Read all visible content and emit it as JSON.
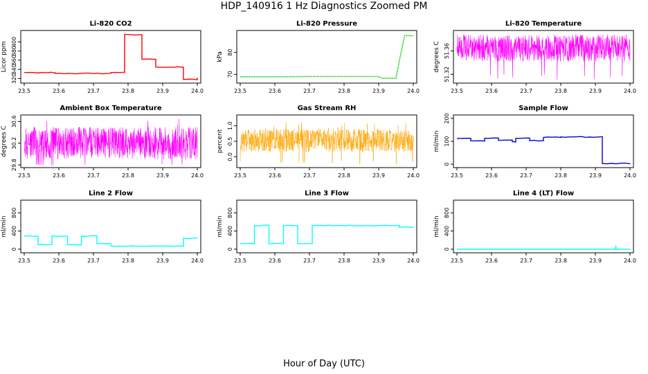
{
  "figure": {
    "title": "HDP_140916  1 Hz Diagnostics Zoomed PM",
    "xlabel": "Hour of Day (UTC)"
  },
  "chart_data": [
    {
      "type": "line",
      "title": "Li-820 CO2",
      "ylabel": "Licor ppm",
      "xlim": [
        23.49,
        24.01
      ],
      "ylim": [
        310,
        425
      ],
      "xticks": [
        "23.5",
        "23.6",
        "23.7",
        "23.8",
        "23.9",
        "24.0"
      ],
      "yticks": [
        "320",
        "340",
        "360",
        "380",
        "400"
      ],
      "color": "#ff0000",
      "style": "steps",
      "series": [
        {
          "x": [
            23.5,
            23.59,
            23.75,
            23.79,
            23.84,
            23.88,
            23.96,
            24.0
          ],
          "y": [
            333,
            331,
            333,
            416,
            362,
            345,
            318,
            322
          ]
        }
      ]
    },
    {
      "type": "line",
      "title": "Li-820 Pressure",
      "ylabel": "kPa",
      "xlim": [
        23.49,
        24.01
      ],
      "ylim": [
        66,
        90
      ],
      "xticks": [
        "23.5",
        "23.6",
        "23.7",
        "23.8",
        "23.9",
        "24.0"
      ],
      "yticks": [
        "70",
        "80"
      ],
      "color": "#00cc00",
      "style": "dotted",
      "series": [
        {
          "x": [
            23.5,
            23.6,
            23.7,
            23.75,
            23.8,
            23.9,
            23.91,
            23.95,
            23.96,
            23.975,
            24.0
          ],
          "y": [
            68.9,
            68.9,
            69.0,
            69.0,
            69.0,
            69.0,
            68.2,
            68.2,
            76.5,
            87.6,
            87.6
          ]
        }
      ]
    },
    {
      "type": "line",
      "title": "Li-820 Temperature",
      "ylabel": "degrees C",
      "xlim": [
        23.49,
        24.01
      ],
      "ylim": [
        51.305,
        51.395
      ],
      "xticks": [
        "23.5",
        "23.6",
        "23.7",
        "23.8",
        "23.9",
        "24.0"
      ],
      "yticks": [
        "51.32",
        "51.36"
      ],
      "color": "#ff00ff",
      "style": "noise",
      "noise": {
        "mean": 51.35,
        "low": 51.342,
        "high": 51.388,
        "spike_low": 51.31
      }
    },
    {
      "type": "line",
      "title": "Ambient Box Temperature",
      "ylabel": "degrees C",
      "xlim": [
        23.49,
        24.01
      ],
      "ylim": [
        29.75,
        30.72
      ],
      "xticks": [
        "23.5",
        "23.6",
        "23.7",
        "23.8",
        "23.9",
        "24.0"
      ],
      "yticks": [
        "29.8",
        "30.2",
        "30.6"
      ],
      "color": "#ff00ff",
      "style": "noise",
      "noise": {
        "mean": 30.2,
        "low": 29.9,
        "high": 30.5,
        "spike_low": 29.78,
        "spike_high": 30.68
      }
    },
    {
      "type": "line",
      "title": "Gas Stream RH",
      "ylabel": "percent",
      "xlim": [
        23.49,
        24.01
      ],
      "ylim": [
        -0.35,
        1.35
      ],
      "xticks": [
        "23.5",
        "23.6",
        "23.7",
        "23.8",
        "23.9",
        "24.0"
      ],
      "yticks": [
        "0.0",
        "0.5",
        "1.0"
      ],
      "color": "#ffa500",
      "style": "noise-dotted",
      "noise": {
        "mean": 0.5,
        "low": 0.15,
        "high": 0.9,
        "spike_low": -0.25,
        "spike_high": 1.15
      }
    },
    {
      "type": "line",
      "title": "Sample Flow",
      "ylabel": "ml/min",
      "xlim": [
        23.49,
        24.01
      ],
      "ylim": [
        -15,
        215
      ],
      "xticks": [
        "23.5",
        "23.6",
        "23.7",
        "23.8",
        "23.9",
        "24.0"
      ],
      "yticks": [
        "0",
        "100",
        "200"
      ],
      "color": "#0000cc",
      "style": "steps",
      "series": [
        {
          "x": [
            23.5,
            23.54,
            23.58,
            23.62,
            23.66,
            23.67,
            23.71,
            23.75,
            23.8,
            23.92,
            24.0
          ],
          "y": [
            112,
            102,
            113,
            104,
            98,
            113,
            103,
            117,
            119,
            3,
            1
          ]
        }
      ]
    },
    {
      "type": "line",
      "title": "Line 2 Flow",
      "ylabel": "ml/min",
      "xlim": [
        23.49,
        24.01
      ],
      "ylim": [
        -80,
        1080
      ],
      "xticks": [
        "23.5",
        "23.6",
        "23.7",
        "23.8",
        "23.9",
        "24.0"
      ],
      "yticks": [
        "0",
        "400",
        "800"
      ],
      "color": "#00ffff",
      "style": "steps",
      "series": [
        {
          "x": [
            23.5,
            23.54,
            23.58,
            23.625,
            23.665,
            23.71,
            23.75,
            23.96,
            24.0
          ],
          "y": [
            290,
            100,
            290,
            100,
            290,
            120,
            70,
            240,
            240
          ]
        }
      ]
    },
    {
      "type": "line",
      "title": "Line 3 Flow",
      "ylabel": "ml/min",
      "xlim": [
        23.49,
        24.01
      ],
      "ylim": [
        -80,
        1080
      ],
      "xticks": [
        "23.5",
        "23.6",
        "23.7",
        "23.8",
        "23.9",
        "24.0"
      ],
      "yticks": [
        "0",
        "400",
        "800"
      ],
      "color": "#00ffff",
      "style": "steps",
      "series": [
        {
          "x": [
            23.5,
            23.541,
            23.583,
            23.625,
            23.666,
            23.708,
            23.96,
            24.0
          ],
          "y": [
            120,
            520,
            120,
            520,
            120,
            520,
            480,
            480
          ]
        }
      ]
    },
    {
      "type": "line",
      "title": "Line 4 (LT) Flow",
      "ylabel": "ml/min",
      "xlim": [
        23.49,
        24.01
      ],
      "ylim": [
        -80,
        1080
      ],
      "xticks": [
        "23.5",
        "23.6",
        "23.7",
        "23.8",
        "23.9",
        "24.0"
      ],
      "yticks": [
        "0",
        "400",
        "800"
      ],
      "color": "#00ffff",
      "style": "line",
      "series": [
        {
          "x": [
            23.5,
            23.958,
            23.959,
            23.96,
            24.0
          ],
          "y": [
            0,
            0,
            80,
            0,
            0
          ]
        }
      ]
    }
  ]
}
